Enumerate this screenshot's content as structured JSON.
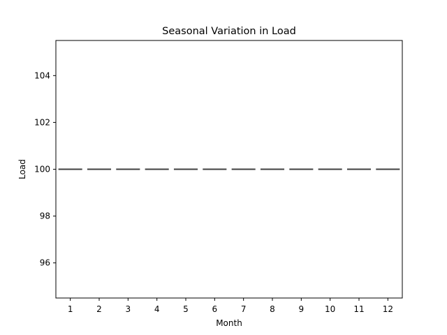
{
  "chart_data": {
    "type": "box",
    "title": "Seasonal Variation in Load",
    "xlabel": "Month",
    "ylabel": "Load",
    "categories": [
      "1",
      "2",
      "3",
      "4",
      "5",
      "6",
      "7",
      "8",
      "9",
      "10",
      "11",
      "12"
    ],
    "series": [
      {
        "values": [
          100,
          100,
          100,
          100,
          100,
          100,
          100,
          100,
          100,
          100,
          100,
          100
        ]
      }
    ],
    "ylim": [
      94.5,
      105.5
    ],
    "yticks": [
      96,
      98,
      100,
      102,
      104
    ],
    "grid": false,
    "colors": {
      "box_edge": "#3f3f3f",
      "axes": "#000000",
      "background": "#ffffff"
    }
  }
}
